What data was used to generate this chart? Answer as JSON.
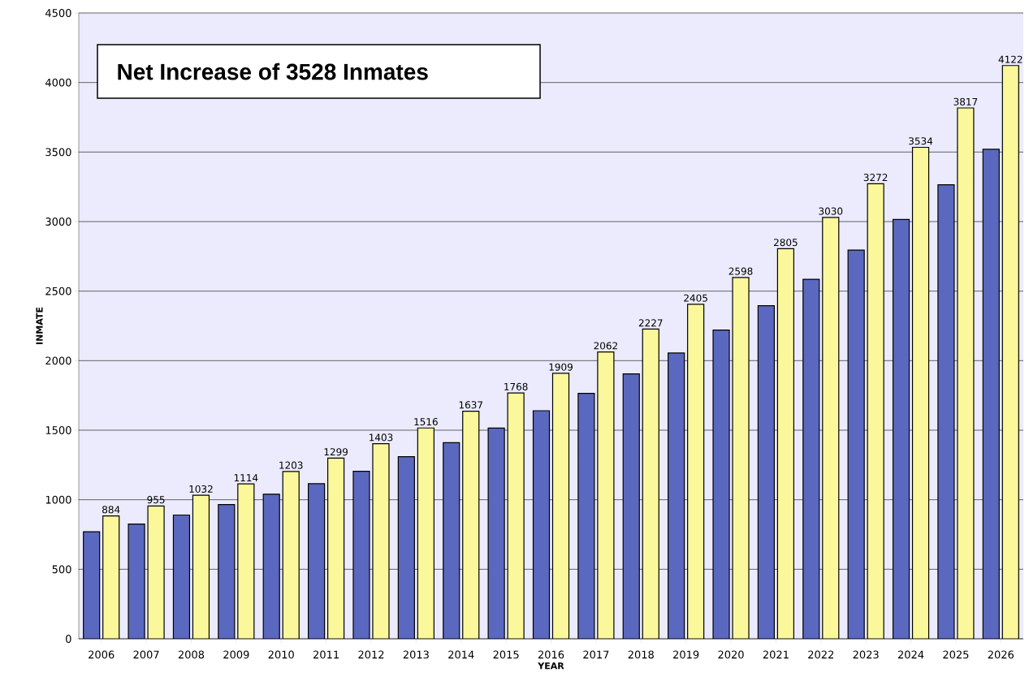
{
  "chart_data": {
    "type": "bar",
    "title": "Net Increase of 3528 Inmates",
    "xlabel": "YEAR",
    "ylabel": "INMATE",
    "categories": [
      "2006",
      "2007",
      "2008",
      "2009",
      "2010",
      "2011",
      "2012",
      "2013",
      "2014",
      "2015",
      "2016",
      "2017",
      "2018",
      "2019",
      "2020",
      "2021",
      "2022",
      "2023",
      "2024",
      "2025",
      "2026"
    ],
    "series": [
      {
        "color": "#5b68c0",
        "values": [
          770,
          825,
          890,
          965,
          1040,
          1115,
          1205,
          1310,
          1410,
          1515,
          1640,
          1765,
          1905,
          2055,
          2220,
          2395,
          2585,
          2795,
          3015,
          3265,
          3520
        ]
      },
      {
        "color": "#fbf89c",
        "values": [
          884,
          955,
          1032,
          1114,
          1203,
          1299,
          1403,
          1516,
          1637,
          1768,
          1909,
          2062,
          2227,
          2405,
          2598,
          2805,
          3030,
          3272,
          3534,
          3817,
          4122
        ],
        "value_labels": [
          "884",
          "955",
          "1032",
          "1114",
          "1203",
          "1299",
          "1403",
          "1516",
          "1637",
          "1768",
          "1909",
          "2062",
          "2227",
          "2405",
          "2598",
          "2805",
          "3030",
          "3272",
          "3534",
          "3817",
          "4122"
        ]
      }
    ],
    "ylim": [
      0,
      4500
    ],
    "yticks": [
      0,
      500,
      1000,
      1500,
      2000,
      2500,
      3000,
      3500,
      4000,
      4500
    ],
    "grid": "y"
  }
}
